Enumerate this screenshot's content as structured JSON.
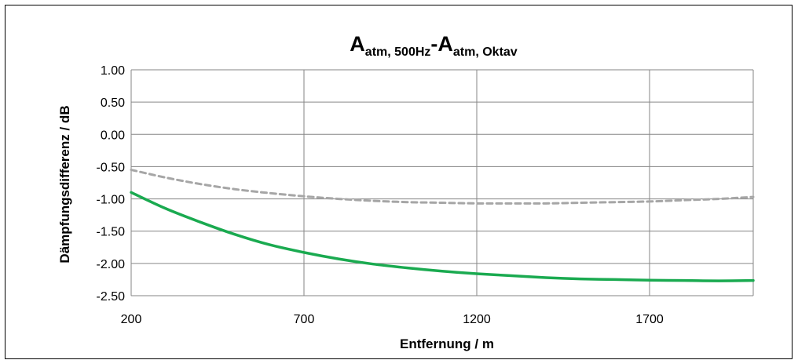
{
  "chart_data": {
    "type": "line",
    "title": {
      "part1_main": "A",
      "part1_sub": "atm, 500Hz",
      "separator": "-",
      "part2_main": "A",
      "part2_sub": "atm, Oktav"
    },
    "xlabel": "Entfernung  / m",
    "ylabel": "Dämpfungsdifferenz  / dB",
    "xlim": [
      200,
      2000
    ],
    "ylim": [
      -2.5,
      1.0
    ],
    "x_ticks": [
      200,
      700,
      1200,
      1700
    ],
    "x_tick_labels": [
      "200",
      "700",
      "1200",
      "1700"
    ],
    "y_ticks": [
      1.0,
      0.5,
      0.0,
      -0.5,
      -1.0,
      -1.5,
      -2.0,
      -2.5
    ],
    "y_tick_labels": [
      "1.00",
      "0.50",
      "0.00",
      "-0.50",
      "-1.00",
      "-1.50",
      "-2.00",
      "-2.50"
    ],
    "grid": true,
    "series": [
      {
        "style": "dashed",
        "color": "#a6a6a6",
        "x": [
          200,
          300,
          400,
          500,
          600,
          700,
          800,
          900,
          1000,
          1100,
          1200,
          1300,
          1400,
          1500,
          1600,
          1700,
          1800,
          1900,
          2000
        ],
        "y": [
          -0.55,
          -0.67,
          -0.77,
          -0.85,
          -0.91,
          -0.96,
          -1.0,
          -1.03,
          -1.05,
          -1.06,
          -1.07,
          -1.07,
          -1.07,
          -1.06,
          -1.05,
          -1.04,
          -1.02,
          -1.0,
          -0.97
        ]
      },
      {
        "style": "solid",
        "color": "#1aaa50",
        "x": [
          200,
          300,
          400,
          500,
          600,
          700,
          800,
          900,
          1000,
          1100,
          1200,
          1300,
          1400,
          1500,
          1600,
          1700,
          1800,
          1900,
          2000
        ],
        "y": [
          -0.9,
          -1.15,
          -1.36,
          -1.55,
          -1.71,
          -1.83,
          -1.93,
          -2.01,
          -2.07,
          -2.12,
          -2.16,
          -2.19,
          -2.22,
          -2.24,
          -2.25,
          -2.26,
          -2.265,
          -2.27,
          -2.265
        ]
      }
    ]
  }
}
